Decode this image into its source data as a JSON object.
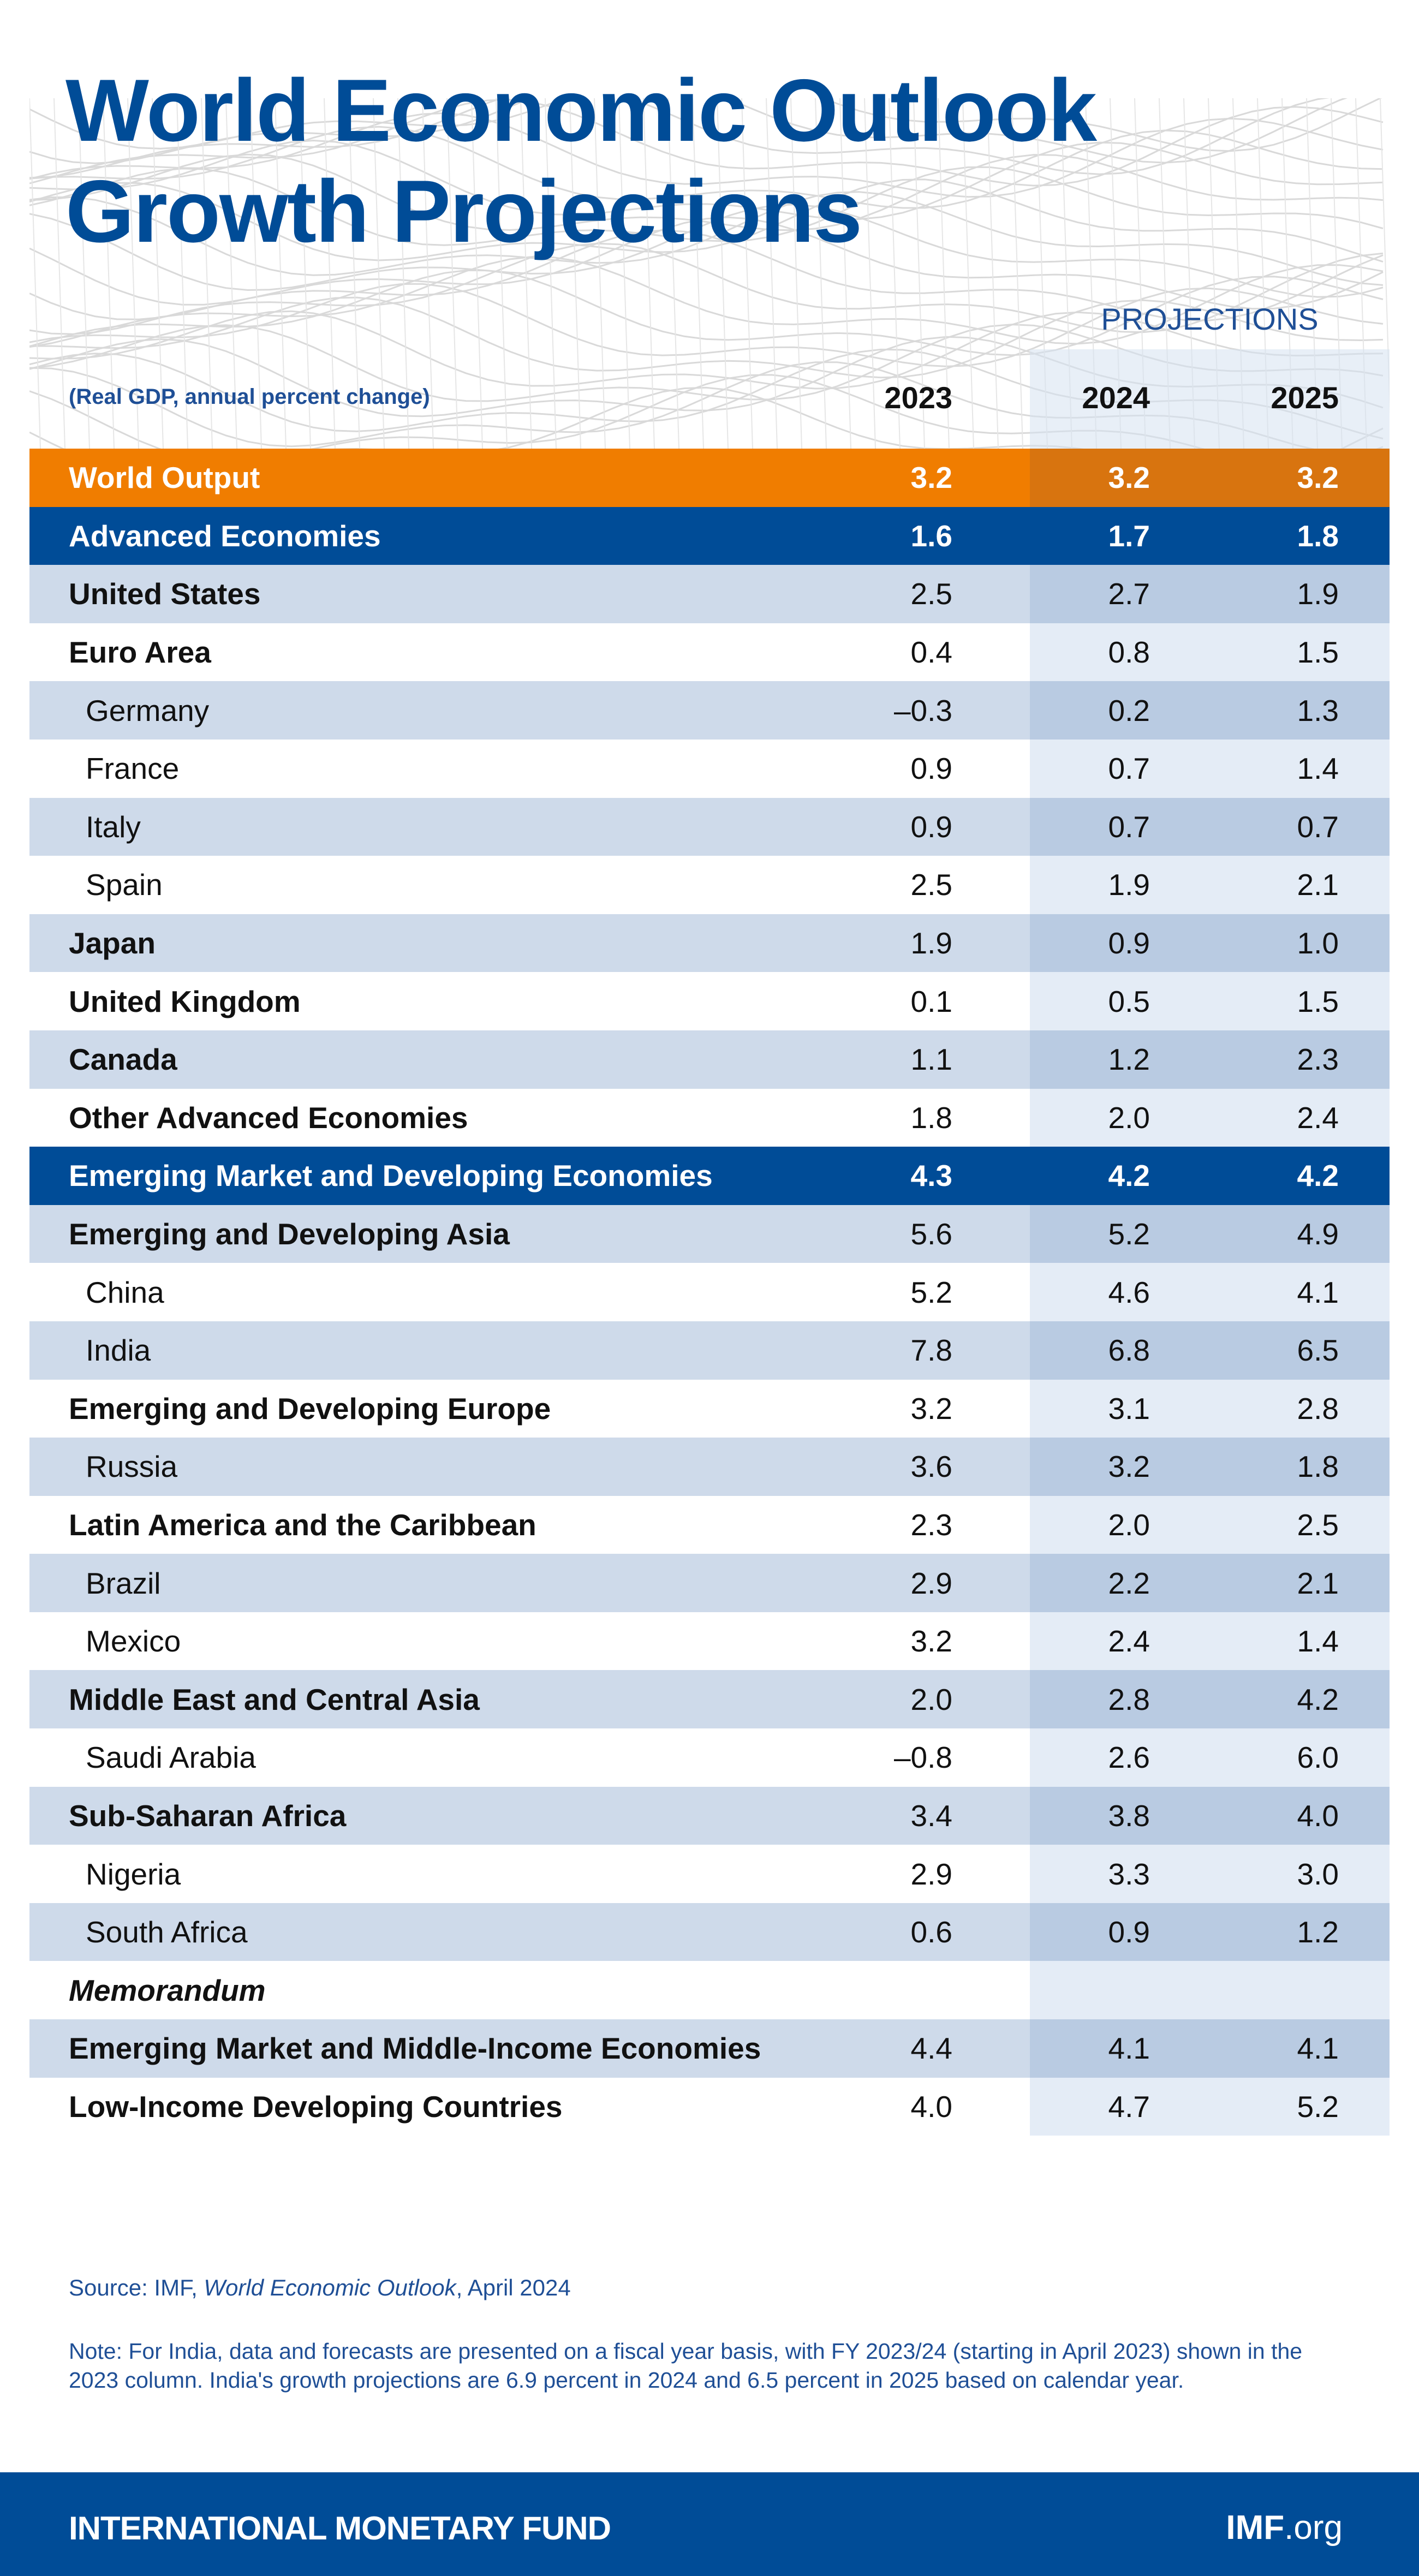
{
  "title_line1": "World Economic Outlook",
  "title_line2": "Growth Projections",
  "header": {
    "projections_label": "PROJECTIONS",
    "unit_label": "(Real GDP, annual percent change)",
    "years": [
      "2023",
      "2024",
      "2025"
    ]
  },
  "colors": {
    "accent_orange": "#f07d00",
    "brand_blue": "#004c97",
    "row_light": "#cedaea",
    "projection_shade": "#b9cbe2"
  },
  "chart_data": {
    "type": "table",
    "title": "World Economic Outlook Growth Projections",
    "columns": [
      "2023",
      "2024",
      "2025"
    ],
    "projection_columns": [
      "2024",
      "2025"
    ],
    "rows": [
      {
        "label": "World Output",
        "type": "world",
        "level": 0,
        "values": [
          "3.2",
          "3.2",
          "3.2"
        ]
      },
      {
        "label": "Advanced Economies",
        "type": "group",
        "level": 0,
        "values": [
          "1.6",
          "1.7",
          "1.8"
        ]
      },
      {
        "label": "United States",
        "type": "light",
        "level": 0,
        "values": [
          "2.5",
          "2.7",
          "1.9"
        ]
      },
      {
        "label": "Euro Area",
        "type": "white",
        "level": 0,
        "values": [
          "0.4",
          "0.8",
          "1.5"
        ]
      },
      {
        "label": "Germany",
        "type": "light",
        "level": 1,
        "values": [
          "–0.3",
          "0.2",
          "1.3"
        ]
      },
      {
        "label": "France",
        "type": "white",
        "level": 1,
        "values": [
          "0.9",
          "0.7",
          "1.4"
        ]
      },
      {
        "label": "Italy",
        "type": "light",
        "level": 1,
        "values": [
          "0.9",
          "0.7",
          "0.7"
        ]
      },
      {
        "label": "Spain",
        "type": "white",
        "level": 1,
        "values": [
          "2.5",
          "1.9",
          "2.1"
        ]
      },
      {
        "label": "Japan",
        "type": "light",
        "level": 0,
        "values": [
          "1.9",
          "0.9",
          "1.0"
        ]
      },
      {
        "label": "United Kingdom",
        "type": "white",
        "level": 0,
        "values": [
          "0.1",
          "0.5",
          "1.5"
        ]
      },
      {
        "label": "Canada",
        "type": "light",
        "level": 0,
        "values": [
          "1.1",
          "1.2",
          "2.3"
        ]
      },
      {
        "label": "Other Advanced Economies",
        "type": "white",
        "level": 0,
        "values": [
          "1.8",
          "2.0",
          "2.4"
        ]
      },
      {
        "label": "Emerging Market and Developing Economies",
        "type": "group",
        "level": 0,
        "values": [
          "4.3",
          "4.2",
          "4.2"
        ]
      },
      {
        "label": "Emerging and Developing Asia",
        "type": "light",
        "level": 0,
        "values": [
          "5.6",
          "5.2",
          "4.9"
        ]
      },
      {
        "label": "China",
        "type": "white",
        "level": 1,
        "values": [
          "5.2",
          "4.6",
          "4.1"
        ]
      },
      {
        "label": "India",
        "type": "light",
        "level": 1,
        "values": [
          "7.8",
          "6.8",
          "6.5"
        ]
      },
      {
        "label": "Emerging and Developing Europe",
        "type": "white",
        "level": 0,
        "values": [
          "3.2",
          "3.1",
          "2.8"
        ]
      },
      {
        "label": "Russia",
        "type": "light",
        "level": 1,
        "values": [
          "3.6",
          "3.2",
          "1.8"
        ]
      },
      {
        "label": "Latin America and the Caribbean",
        "type": "white",
        "level": 0,
        "values": [
          "2.3",
          "2.0",
          "2.5"
        ]
      },
      {
        "label": "Brazil",
        "type": "light",
        "level": 1,
        "values": [
          "2.9",
          "2.2",
          "2.1"
        ]
      },
      {
        "label": "Mexico",
        "type": "white",
        "level": 1,
        "values": [
          "3.2",
          "2.4",
          "1.4"
        ]
      },
      {
        "label": "Middle East and Central Asia",
        "type": "light",
        "level": 0,
        "values": [
          "2.0",
          "2.8",
          "4.2"
        ]
      },
      {
        "label": "Saudi Arabia",
        "type": "white",
        "level": 1,
        "values": [
          "–0.8",
          "2.6",
          "6.0"
        ]
      },
      {
        "label": "Sub-Saharan Africa",
        "type": "light",
        "level": 0,
        "values": [
          "3.4",
          "3.8",
          "4.0"
        ]
      },
      {
        "label": "Nigeria",
        "type": "white",
        "level": 1,
        "values": [
          "2.9",
          "3.3",
          "3.0"
        ]
      },
      {
        "label": "South Africa",
        "type": "light",
        "level": 1,
        "values": [
          "0.6",
          "0.9",
          "1.2"
        ]
      },
      {
        "label": "Memorandum",
        "type": "memo",
        "level": 0,
        "values": [
          "",
          "",
          ""
        ]
      },
      {
        "label": "Emerging Market and Middle-Income Economies",
        "type": "light",
        "level": 0,
        "values": [
          "4.4",
          "4.1",
          "4.1"
        ]
      },
      {
        "label": "Low-Income Developing Countries",
        "type": "white",
        "level": 0,
        "values": [
          "4.0",
          "4.7",
          "5.2"
        ]
      }
    ]
  },
  "source": {
    "prefix": "Source: IMF, ",
    "publication": "World Economic Outlook",
    "suffix": ", April 2024"
  },
  "note": "Note: For India, data and forecasts are presented on a fiscal year basis, with FY 2023/24 (starting in April 2023) shown in the 2023 column. India's growth projections are 6.9 percent in 2024 and 6.5 percent in 2025 based on calendar year.",
  "footer": {
    "org_name": "INTERNATIONAL MONETARY FUND",
    "site_bold": "IMF",
    "site_rest": ".org"
  }
}
